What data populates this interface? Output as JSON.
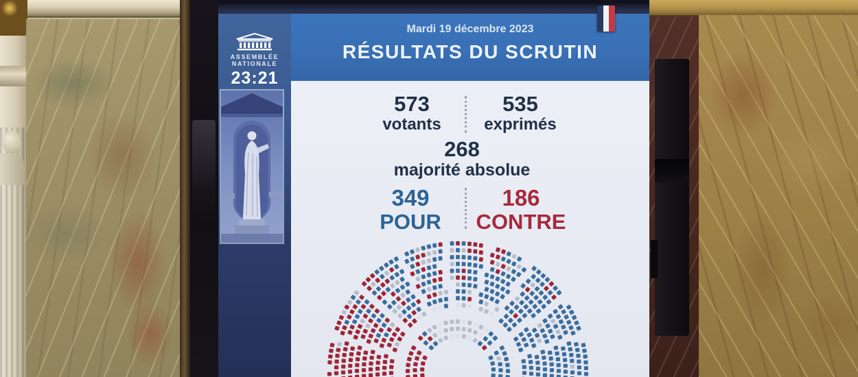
{
  "screen": {
    "sidebar": {
      "institution_line1": "ASSEMBLÉE",
      "institution_line2": "NATIONALE",
      "time": "23:21"
    },
    "header": {
      "date": "Mardi 19 décembre 2023",
      "title": "RÉSULTATS DU SCRUTIN"
    },
    "stats": {
      "votants": {
        "value": "573",
        "label": "votants"
      },
      "exprimes": {
        "value": "535",
        "label": "exprimés"
      },
      "majorite": {
        "value": "268",
        "label": "majorité absolue"
      },
      "pour": {
        "value": "349",
        "label": "POUR"
      },
      "contre": {
        "value": "186",
        "label": "CONTRE"
      }
    },
    "colors": {
      "pour_text": "#2d6496",
      "contre_text": "#a62a3b",
      "seat_blue": "#3a6d9e",
      "seat_red": "#9f2535",
      "seat_gray": "#b7bdc9",
      "seat_faint": "#dde1ea",
      "banner_blue": "#3a70b5",
      "flag": [
        "#273a5f",
        "#eef0f4",
        "#c43a44"
      ]
    }
  },
  "chart_data": {
    "type": "hemicycle",
    "title": "RÉSULTATS DU SCRUTIN",
    "date": "Mardi 19 décembre 2023",
    "votants": 573,
    "exprimes": 535,
    "majorite_absolue": 268,
    "series": [
      {
        "name": "POUR",
        "value": 349,
        "color": "#3a6d9e"
      },
      {
        "name": "CONTRE",
        "value": 186,
        "color": "#9f2535"
      }
    ],
    "layout": "semicircular seat map, 13 concentric rows, radial aisles; left wing red, centre/right blue, centre-front gray"
  }
}
